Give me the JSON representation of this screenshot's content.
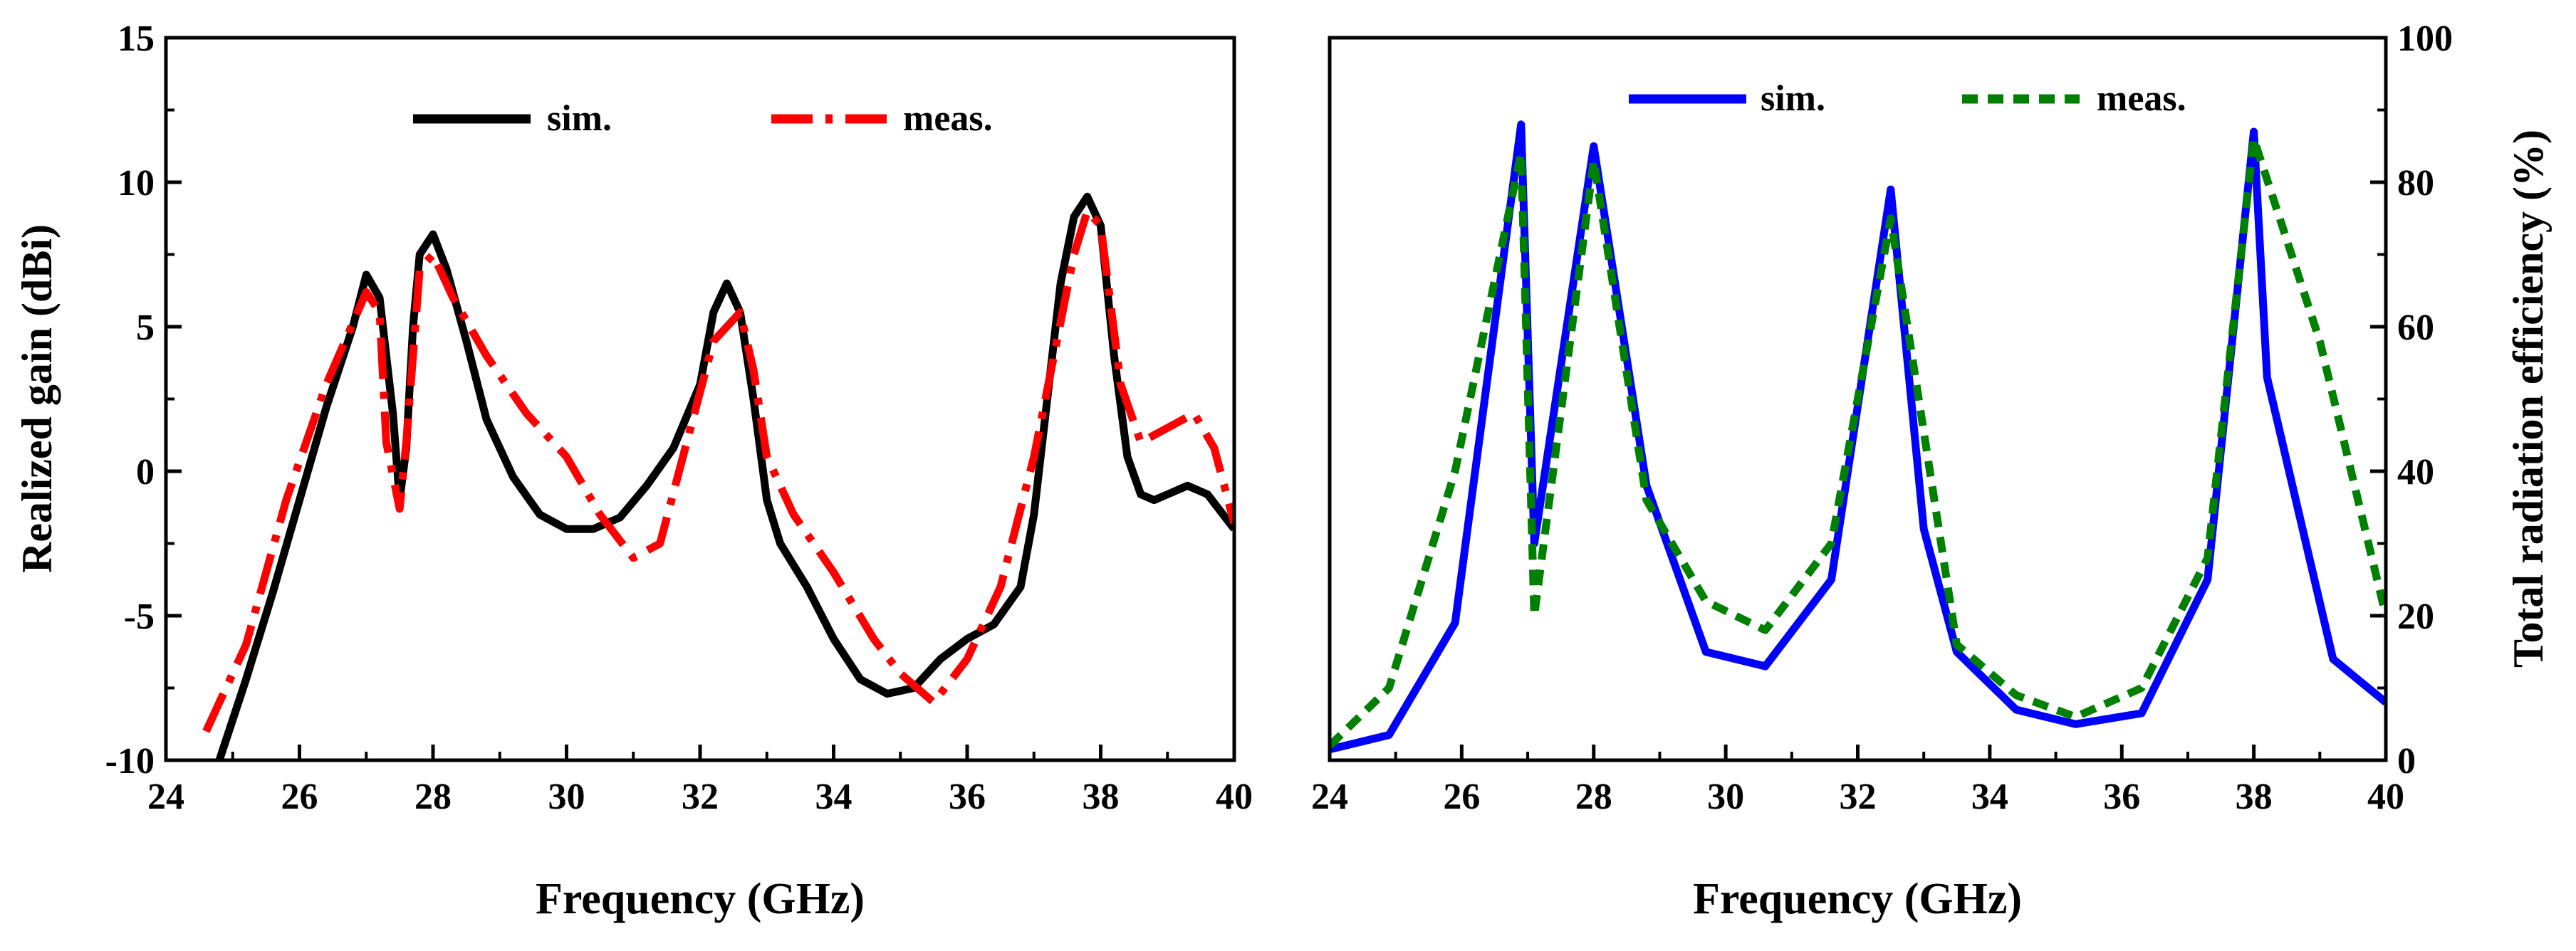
{
  "chart_data": [
    {
      "type": "line",
      "xlabel": "Frequency (GHz)",
      "ylabel": "Realized gain (dBi)",
      "xlim": [
        24,
        40
      ],
      "ylim": [
        -10,
        15
      ],
      "xticks": [
        "24",
        "26",
        "28",
        "30",
        "32",
        "34",
        "36",
        "38",
        "40"
      ],
      "yticks": [
        "-10",
        "-5",
        "0",
        "5",
        "10",
        "15"
      ],
      "legend_location": "top-center",
      "series": [
        {
          "name": "sim.",
          "color": "#000000",
          "style": "solid",
          "x": [
            24.8,
            25.2,
            25.6,
            26.0,
            26.4,
            26.8,
            27.0,
            27.2,
            27.4,
            27.5,
            27.6,
            27.7,
            27.8,
            28.0,
            28.2,
            28.5,
            28.8,
            29.2,
            29.6,
            30.0,
            30.4,
            30.8,
            31.2,
            31.6,
            32.0,
            32.2,
            32.4,
            32.6,
            32.8,
            33.0,
            33.2,
            33.6,
            34.0,
            34.4,
            34.8,
            35.2,
            35.6,
            36.0,
            36.4,
            36.8,
            37.0,
            37.2,
            37.4,
            37.6,
            37.8,
            38.0,
            38.2,
            38.4,
            38.6,
            38.8,
            39.0,
            39.3,
            39.6,
            40.0
          ],
          "y": [
            -10.0,
            -7.2,
            -4.2,
            -1.0,
            2.2,
            5.0,
            6.8,
            6.0,
            2.0,
            -1.0,
            0.8,
            5.0,
            7.5,
            8.2,
            7.0,
            4.5,
            1.8,
            -0.2,
            -1.5,
            -2.0,
            -2.0,
            -1.6,
            -0.5,
            0.8,
            3.0,
            5.5,
            6.5,
            5.5,
            2.5,
            -1.0,
            -2.5,
            -4.0,
            -5.8,
            -7.2,
            -7.7,
            -7.5,
            -6.5,
            -5.8,
            -5.3,
            -4.0,
            -1.5,
            2.5,
            6.5,
            8.8,
            9.5,
            8.5,
            4.0,
            0.5,
            -0.8,
            -1.0,
            -0.8,
            -0.5,
            -0.8,
            -2.0
          ]
        },
        {
          "name": "meas.",
          "color": "#ff0000",
          "style": "dash-dot",
          "x": [
            24.6,
            25.2,
            25.8,
            26.4,
            27.0,
            27.2,
            27.3,
            27.5,
            27.6,
            27.8,
            28.0,
            28.3,
            28.8,
            29.4,
            30.0,
            30.5,
            31.0,
            31.4,
            31.8,
            32.2,
            32.6,
            32.8,
            33.0,
            33.4,
            34.0,
            34.6,
            35.0,
            35.5,
            36.0,
            36.5,
            37.0,
            37.3,
            37.6,
            37.8,
            38.0,
            38.3,
            38.6,
            39.0,
            39.4,
            39.7,
            40.0
          ],
          "y": [
            -9.0,
            -6.0,
            -1.0,
            3.0,
            6.2,
            5.5,
            1.0,
            -1.3,
            1.0,
            7.0,
            7.5,
            6.0,
            4.0,
            2.0,
            0.5,
            -1.5,
            -3.0,
            -2.5,
            1.0,
            4.5,
            5.5,
            3.5,
            0.5,
            -1.5,
            -3.5,
            -5.8,
            -7.0,
            -8.0,
            -6.5,
            -4.0,
            0.5,
            4.0,
            7.5,
            9.0,
            8.5,
            3.0,
            1.0,
            1.5,
            2.0,
            0.8,
            -1.8
          ]
        }
      ]
    },
    {
      "type": "line",
      "xlabel": "Frequency (GHz)",
      "ylabel": "Total radiation efficiency (%)",
      "xlim": [
        24,
        40
      ],
      "ylim": [
        0,
        100
      ],
      "y_axis_side": "right",
      "xticks": [
        "24",
        "26",
        "28",
        "30",
        "32",
        "34",
        "36",
        "38",
        "40"
      ],
      "yticks": [
        "0",
        "20",
        "40",
        "60",
        "80",
        "100"
      ],
      "legend_location": "top-center",
      "series": [
        {
          "name": "sim.",
          "color": "#0000ff",
          "style": "solid",
          "x": [
            24.0,
            24.9,
            25.9,
            26.9,
            27.1,
            28.0,
            28.8,
            29.7,
            30.6,
            31.6,
            32.5,
            33.0,
            33.5,
            34.4,
            35.3,
            36.3,
            37.3,
            38.0,
            38.2,
            39.2,
            40.0
          ],
          "y": [
            1.5,
            3.5,
            19.0,
            88.0,
            30.0,
            85.0,
            38.0,
            15.0,
            13.0,
            25.0,
            79.0,
            32.0,
            15.0,
            7.0,
            5.0,
            6.5,
            25.0,
            87.0,
            53.0,
            14.0,
            8.0
          ]
        },
        {
          "name": "meas.",
          "color": "#008000",
          "style": "dashed",
          "x": [
            24.0,
            24.9,
            25.9,
            26.9,
            27.1,
            28.0,
            28.8,
            29.7,
            30.6,
            31.6,
            32.5,
            33.5,
            34.4,
            35.3,
            36.3,
            37.3,
            38.0,
            39.0,
            40.0
          ],
          "y": [
            2.0,
            10.0,
            40.0,
            84.0,
            20.0,
            83.0,
            36.0,
            22.0,
            18.0,
            30.0,
            75.0,
            16.0,
            9.0,
            6.0,
            10.0,
            28.0,
            86.0,
            58.0,
            20.0
          ]
        }
      ]
    }
  ]
}
